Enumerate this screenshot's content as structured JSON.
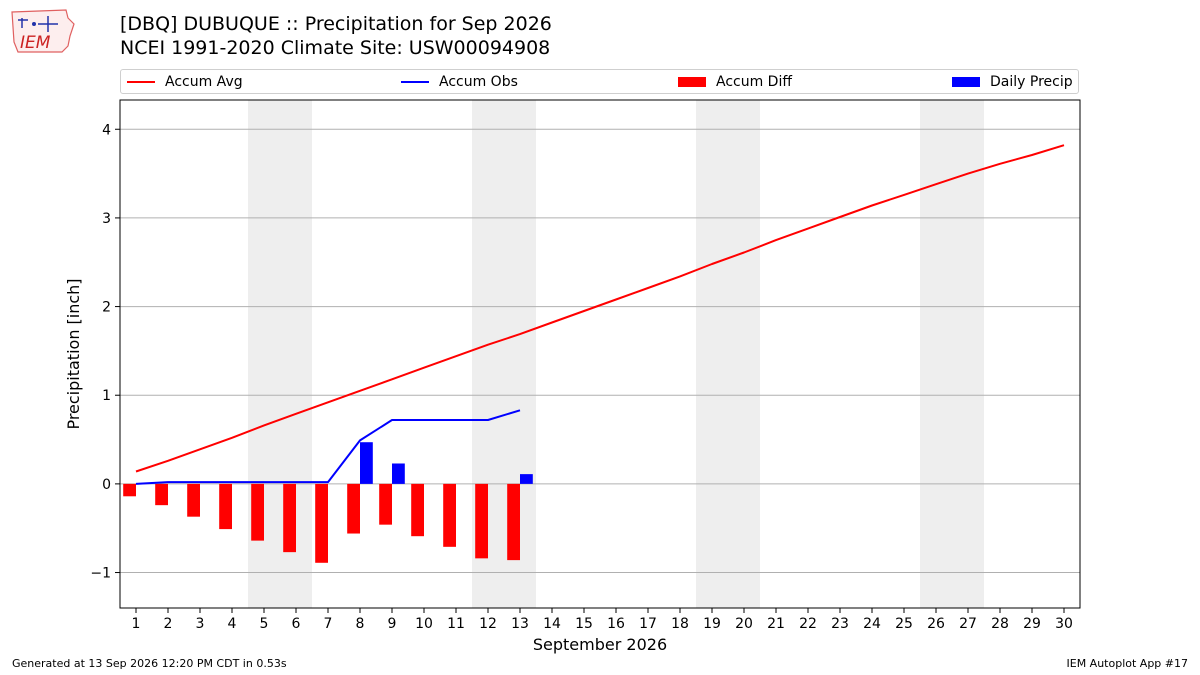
{
  "header": {
    "title_line1": "[DBQ] DUBUQUE :: Precipitation for Sep 2026",
    "title_line2": "NCEI 1991-2020 Climate Site: USW00094908",
    "logo_text": "IEM"
  },
  "footer": {
    "generated": "Generated at 13 Sep 2026 12:20 PM CDT in 0.53s",
    "app": "IEM Autoplot App #17"
  },
  "colors": {
    "avg": "#ff0000",
    "obs": "#0000ff",
    "diff": "#ff0000",
    "daily": "#0000ff",
    "weekend": "#eeeeee",
    "grid": "#b0b0b0"
  },
  "chart_data": {
    "type": "bar",
    "xlabel": "September 2026",
    "ylabel": "Precipitation [inch]",
    "xlim": [
      0.5,
      30.5
    ],
    "ylim": [
      -1.4,
      4.33
    ],
    "yticks": [
      -1,
      0,
      1,
      2,
      3,
      4
    ],
    "ytick_labels": [
      "−1",
      "0",
      "1",
      "2",
      "3",
      "4"
    ],
    "days": [
      1,
      2,
      3,
      4,
      5,
      6,
      7,
      8,
      9,
      10,
      11,
      12,
      13,
      14,
      15,
      16,
      17,
      18,
      19,
      20,
      21,
      22,
      23,
      24,
      25,
      26,
      27,
      28,
      29,
      30
    ],
    "weekend_spans": [
      [
        4.5,
        6.5
      ],
      [
        11.5,
        13.5
      ],
      [
        18.5,
        20.5
      ],
      [
        25.5,
        27.5
      ]
    ],
    "grid": "horizontal",
    "legend_position": "top",
    "series": [
      {
        "name": "Accum Avg",
        "kind": "line",
        "x": [
          1,
          2,
          3,
          4,
          5,
          6,
          7,
          8,
          9,
          10,
          11,
          12,
          13,
          14,
          15,
          16,
          17,
          18,
          19,
          20,
          21,
          22,
          23,
          24,
          25,
          26,
          27,
          28,
          29,
          30
        ],
        "values": [
          0.14,
          0.26,
          0.39,
          0.52,
          0.66,
          0.79,
          0.92,
          1.05,
          1.18,
          1.31,
          1.44,
          1.57,
          1.69,
          1.82,
          1.95,
          2.08,
          2.21,
          2.34,
          2.48,
          2.61,
          2.75,
          2.88,
          3.01,
          3.14,
          3.26,
          3.38,
          3.5,
          3.61,
          3.71,
          3.82
        ]
      },
      {
        "name": "Accum Obs",
        "kind": "line",
        "x": [
          1,
          2,
          3,
          4,
          5,
          6,
          7,
          8,
          9,
          10,
          11,
          12,
          13
        ],
        "values": [
          0.0,
          0.02,
          0.02,
          0.02,
          0.02,
          0.02,
          0.02,
          0.49,
          0.72,
          0.72,
          0.72,
          0.72,
          0.83
        ]
      },
      {
        "name": "Accum Diff",
        "kind": "bar",
        "offset": -0.2,
        "x": [
          1,
          2,
          3,
          4,
          5,
          6,
          7,
          8,
          9,
          10,
          11,
          12,
          13
        ],
        "values": [
          -0.14,
          -0.24,
          -0.37,
          -0.51,
          -0.64,
          -0.77,
          -0.89,
          -0.56,
          -0.46,
          -0.59,
          -0.71,
          -0.84,
          -0.86
        ]
      },
      {
        "name": "Daily Precip",
        "kind": "bar",
        "offset": 0.2,
        "x": [
          1,
          2,
          3,
          4,
          5,
          6,
          7,
          8,
          9,
          10,
          11,
          12,
          13
        ],
        "values": [
          0,
          0,
          0,
          0,
          0,
          0,
          0,
          0.47,
          0.23,
          0,
          0,
          0,
          0.11
        ]
      }
    ]
  }
}
